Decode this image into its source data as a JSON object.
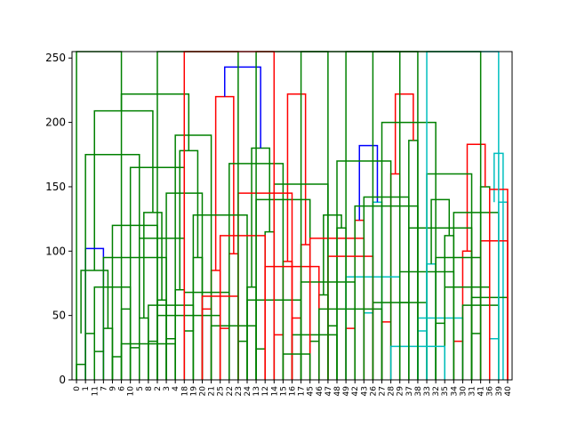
{
  "chart_data": {
    "type": "dendrogram",
    "title": "",
    "xlabel": "",
    "ylabel": "",
    "ylim": [
      0,
      255
    ],
    "yticks": [
      0,
      50,
      100,
      150,
      200,
      250
    ],
    "ytick_labels": [
      "0",
      "50",
      "100",
      "150",
      "200",
      "250"
    ],
    "leaf_labels": [
      "0",
      "1",
      "11",
      "7",
      "9",
      "6",
      "10",
      "5",
      "8",
      "2",
      "3",
      "4",
      "18",
      "19",
      "20",
      "21",
      "25",
      "22",
      "23",
      "24",
      "13",
      "12",
      "14",
      "15",
      "16",
      "17",
      "45",
      "46",
      "47",
      "48",
      "49",
      "42",
      "43",
      "26",
      "27",
      "28",
      "29",
      "37",
      "38",
      "33",
      "32",
      "35",
      "34",
      "30",
      "31",
      "41",
      "36",
      "39",
      "40"
    ],
    "colors": {
      "green": "#008000",
      "red": "#ff0000",
      "blue": "#0000ff",
      "cyan": "#00bfbf",
      "axis": "#000000"
    },
    "links": [
      {
        "a": 0,
        "b": 1,
        "ha": 0,
        "hb": 0,
        "h": 12,
        "c": "green"
      },
      {
        "a": 1,
        "b": 2,
        "ha": 12,
        "hb": 0,
        "h": 36,
        "c": "green"
      },
      {
        "a": 2,
        "b": 3,
        "ha": 0,
        "hb": 0,
        "h": 22,
        "c": "green"
      },
      {
        "a": 3,
        "b": 4,
        "ha": 22,
        "hb": 0,
        "h": 40,
        "c": "green"
      },
      {
        "a": 4,
        "b": 5,
        "ha": 0,
        "hb": 0,
        "h": 18,
        "c": "green"
      },
      {
        "a": 5,
        "b": 6,
        "ha": 18,
        "hb": 0,
        "h": 55,
        "c": "green"
      },
      {
        "a": 0.5,
        "b": 3.5,
        "ha": 36,
        "hb": 40,
        "h": 85,
        "c": "green"
      },
      {
        "a": 6,
        "b": 7,
        "ha": 0,
        "hb": 0,
        "h": 25,
        "c": "green"
      },
      {
        "a": 7,
        "b": 8,
        "ha": 25,
        "hb": 0,
        "h": 48,
        "c": "green"
      },
      {
        "a": 8,
        "b": 9,
        "ha": 0,
        "hb": 0,
        "h": 30,
        "c": "green"
      },
      {
        "a": 9,
        "b": 10,
        "ha": 30,
        "hb": 0,
        "h": 62,
        "c": "green"
      },
      {
        "a": 7.5,
        "b": 9.5,
        "ha": 48,
        "hb": 62,
        "h": 130,
        "c": "green"
      },
      {
        "a": 2,
        "b": 8.5,
        "ha": 85,
        "hb": 130,
        "h": 209,
        "c": "green"
      },
      {
        "a": 10,
        "b": 11,
        "ha": 0,
        "hb": 0,
        "h": 32,
        "c": "green"
      },
      {
        "a": 11,
        "b": 12,
        "ha": 32,
        "hb": 0,
        "h": 70,
        "c": "green"
      },
      {
        "a": 12,
        "b": 13,
        "ha": 0,
        "hb": 0,
        "h": 38,
        "c": "green"
      },
      {
        "a": 13,
        "b": 14,
        "ha": 38,
        "hb": 0,
        "h": 95,
        "c": "green"
      },
      {
        "a": 11.5,
        "b": 13.5,
        "ha": 70,
        "hb": 95,
        "h": 178,
        "c": "green"
      },
      {
        "a": 5,
        "b": 12.5,
        "ha": 209,
        "hb": 178,
        "h": 222,
        "c": "green"
      },
      {
        "a": 1,
        "b": 3,
        "ha": 0,
        "hb": 0,
        "h": 102,
        "c": "blue"
      },
      {
        "a": 14,
        "b": 15,
        "ha": 0,
        "hb": 0,
        "h": 55,
        "c": "red"
      },
      {
        "a": 15,
        "b": 16,
        "ha": 55,
        "hb": 0,
        "h": 85,
        "c": "red"
      },
      {
        "a": 16,
        "b": 17,
        "ha": 0,
        "hb": 0,
        "h": 40,
        "c": "red"
      },
      {
        "a": 17,
        "b": 18,
        "ha": 40,
        "hb": 0,
        "h": 98,
        "c": "red"
      },
      {
        "a": 15.5,
        "b": 17.5,
        "ha": 85,
        "hb": 98,
        "h": 220,
        "c": "red"
      },
      {
        "a": 18,
        "b": 19,
        "ha": 0,
        "hb": 0,
        "h": 30,
        "c": "green"
      },
      {
        "a": 19,
        "b": 20,
        "ha": 30,
        "hb": 0,
        "h": 72,
        "c": "green"
      },
      {
        "a": 20,
        "b": 21,
        "ha": 0,
        "hb": 0,
        "h": 24,
        "c": "green"
      },
      {
        "a": 21,
        "b": 22,
        "ha": 24,
        "hb": 0,
        "h": 115,
        "c": "green"
      },
      {
        "a": 19.5,
        "b": 21.5,
        "ha": 72,
        "hb": 115,
        "h": 180,
        "c": "green"
      },
      {
        "a": 16.5,
        "b": 20.5,
        "ha": 220,
        "hb": 180,
        "h": 243,
        "c": "blue"
      },
      {
        "a": 22,
        "b": 23,
        "ha": 0,
        "hb": 0,
        "h": 35,
        "c": "red"
      },
      {
        "a": 23,
        "b": 24,
        "ha": 35,
        "hb": 0,
        "h": 92,
        "c": "red"
      },
      {
        "a": 24,
        "b": 25,
        "ha": 0,
        "hb": 0,
        "h": 48,
        "c": "red"
      },
      {
        "a": 25,
        "b": 26,
        "ha": 48,
        "hb": 0,
        "h": 105,
        "c": "red"
      },
      {
        "a": 23.5,
        "b": 25.5,
        "ha": 92,
        "hb": 105,
        "h": 222,
        "c": "red"
      },
      {
        "a": 26,
        "b": 27,
        "ha": 0,
        "hb": 0,
        "h": 30,
        "c": "green"
      },
      {
        "a": 27,
        "b": 28,
        "ha": 30,
        "hb": 0,
        "h": 66,
        "c": "green"
      },
      {
        "a": 28,
        "b": 29,
        "ha": 0,
        "hb": 0,
        "h": 42,
        "c": "green"
      },
      {
        "a": 29,
        "b": 30,
        "ha": 42,
        "hb": 0,
        "h": 118,
        "c": "green"
      },
      {
        "a": 27.5,
        "b": 29.5,
        "ha": 66,
        "hb": 118,
        "h": 128,
        "c": "green"
      },
      {
        "a": 30,
        "b": 31,
        "ha": 0,
        "hb": 0,
        "h": 40,
        "c": "red"
      },
      {
        "a": 31,
        "b": 32,
        "ha": 40,
        "hb": 0,
        "h": 124,
        "c": "red"
      },
      {
        "a": 32,
        "b": 33,
        "ha": 0,
        "hb": 0,
        "h": 52,
        "c": "cyan"
      },
      {
        "a": 33,
        "b": 34,
        "ha": 52,
        "hb": 0,
        "h": 138,
        "c": "cyan"
      },
      {
        "a": 31.5,
        "b": 33.5,
        "ha": 124,
        "hb": 138,
        "h": 182,
        "c": "blue"
      },
      {
        "a": 34,
        "b": 35,
        "ha": 0,
        "hb": 0,
        "h": 45,
        "c": "red"
      },
      {
        "a": 35,
        "b": 36,
        "ha": 45,
        "hb": 0,
        "h": 160,
        "c": "red"
      },
      {
        "a": 36,
        "b": 37,
        "ha": 0,
        "hb": 0,
        "h": 60,
        "c": "green"
      },
      {
        "a": 37,
        "b": 38,
        "ha": 60,
        "hb": 0,
        "h": 186,
        "c": "green"
      },
      {
        "a": 35.5,
        "b": 37.5,
        "ha": 160,
        "hb": 186,
        "h": 222,
        "c": "red"
      },
      {
        "a": 38,
        "b": 39,
        "ha": 0,
        "hb": 0,
        "h": 38,
        "c": "cyan"
      },
      {
        "a": 39,
        "b": 40,
        "ha": 38,
        "hb": 0,
        "h": 90,
        "c": "cyan"
      },
      {
        "a": 40,
        "b": 41,
        "ha": 0,
        "hb": 0,
        "h": 44,
        "c": "green"
      },
      {
        "a": 41,
        "b": 42,
        "ha": 44,
        "hb": 0,
        "h": 112,
        "c": "green"
      },
      {
        "a": 39.5,
        "b": 41.5,
        "ha": 90,
        "hb": 112,
        "h": 140,
        "c": "green"
      },
      {
        "a": 42,
        "b": 43,
        "ha": 0,
        "hb": 0,
        "h": 30,
        "c": "red"
      },
      {
        "a": 43,
        "b": 44,
        "ha": 30,
        "hb": 0,
        "h": 100,
        "c": "red"
      },
      {
        "a": 44,
        "b": 45,
        "ha": 0,
        "hb": 0,
        "h": 36,
        "c": "green"
      },
      {
        "a": 45,
        "b": 46,
        "ha": 36,
        "hb": 0,
        "h": 150,
        "c": "green"
      },
      {
        "a": 43.5,
        "b": 45.5,
        "ha": 100,
        "hb": 150,
        "h": 183,
        "c": "red"
      },
      {
        "a": 46,
        "b": 47,
        "ha": 0,
        "hb": 0,
        "h": 32,
        "c": "cyan"
      },
      {
        "a": 47,
        "b": 48,
        "ha": 32,
        "hb": 0,
        "h": 138,
        "c": "cyan"
      },
      {
        "a": 46.5,
        "b": 47.5,
        "ha": 138,
        "hb": 0,
        "h": 176,
        "c": "cyan"
      },
      {
        "a": 2,
        "b": 6,
        "ha": 0,
        "hb": 0,
        "h": 72,
        "c": "green"
      },
      {
        "a": 4,
        "b": 9,
        "ha": 0,
        "hb": 0,
        "h": 120,
        "c": "green"
      },
      {
        "a": 6,
        "b": 12,
        "ha": 0,
        "hb": 0,
        "h": 165,
        "c": "green"
      },
      {
        "a": 8,
        "b": 13,
        "ha": 0,
        "hb": 0,
        "h": 58,
        "c": "green"
      },
      {
        "a": 10,
        "b": 14,
        "ha": 0,
        "hb": 0,
        "h": 145,
        "c": "green"
      },
      {
        "a": 12,
        "b": 17,
        "ha": 0,
        "hb": 0,
        "h": 68,
        "c": "green"
      },
      {
        "a": 13,
        "b": 19,
        "ha": 0,
        "hb": 0,
        "h": 128,
        "c": "green"
      },
      {
        "a": 15,
        "b": 20,
        "ha": 0,
        "hb": 0,
        "h": 42,
        "c": "green"
      },
      {
        "a": 17,
        "b": 23,
        "ha": 0,
        "hb": 0,
        "h": 168,
        "c": "green"
      },
      {
        "a": 19,
        "b": 25,
        "ha": 0,
        "hb": 0,
        "h": 62,
        "c": "green"
      },
      {
        "a": 20,
        "b": 26,
        "ha": 0,
        "hb": 0,
        "h": 140,
        "c": "green"
      },
      {
        "a": 21,
        "b": 27,
        "ha": 0,
        "hb": 0,
        "h": 88,
        "c": "red"
      },
      {
        "a": 22,
        "b": 28,
        "ha": 0,
        "hb": 0,
        "h": 152,
        "c": "green"
      },
      {
        "a": 24,
        "b": 29,
        "ha": 0,
        "hb": 0,
        "h": 35,
        "c": "green"
      },
      {
        "a": 25,
        "b": 31,
        "ha": 0,
        "hb": 0,
        "h": 76,
        "c": "green"
      },
      {
        "a": 26,
        "b": 32,
        "ha": 0,
        "hb": 0,
        "h": 110,
        "c": "red"
      },
      {
        "a": 27,
        "b": 34,
        "ha": 0,
        "hb": 0,
        "h": 55,
        "c": "green"
      },
      {
        "a": 29,
        "b": 35,
        "ha": 0,
        "hb": 0,
        "h": 170,
        "c": "green"
      },
      {
        "a": 30,
        "b": 36,
        "ha": 0,
        "hb": 0,
        "h": 80,
        "c": "cyan"
      },
      {
        "a": 31,
        "b": 38,
        "ha": 0,
        "hb": 0,
        "h": 135,
        "c": "green"
      },
      {
        "a": 33,
        "b": 39,
        "ha": 0,
        "hb": 0,
        "h": 60,
        "c": "green"
      },
      {
        "a": 34,
        "b": 40,
        "ha": 0,
        "hb": 0,
        "h": 200,
        "c": "green"
      },
      {
        "a": 36,
        "b": 42,
        "ha": 0,
        "hb": 0,
        "h": 84,
        "c": "green"
      },
      {
        "a": 38,
        "b": 43,
        "ha": 0,
        "hb": 0,
        "h": 48,
        "c": "cyan"
      },
      {
        "a": 39,
        "b": 44,
        "ha": 0,
        "hb": 0,
        "h": 160,
        "c": "green"
      },
      {
        "a": 40,
        "b": 45,
        "ha": 0,
        "hb": 0,
        "h": 95,
        "c": "green"
      },
      {
        "a": 41,
        "b": 46,
        "ha": 0,
        "hb": 0,
        "h": 72,
        "c": "green"
      },
      {
        "a": 42,
        "b": 47,
        "ha": 0,
        "hb": 0,
        "h": 130,
        "c": "green"
      },
      {
        "a": 44,
        "b": 48,
        "ha": 0,
        "hb": 0,
        "h": 64,
        "c": "green"
      },
      {
        "a": 45,
        "b": 48,
        "ha": 0,
        "hb": 0,
        "h": 108,
        "c": "red"
      },
      {
        "a": 1,
        "b": 7,
        "ha": 0,
        "hb": 0,
        "h": 175,
        "c": "green"
      },
      {
        "a": 3,
        "b": 10,
        "ha": 0,
        "hb": 0,
        "h": 95,
        "c": "green"
      },
      {
        "a": 5,
        "b": 11,
        "ha": 0,
        "hb": 0,
        "h": 28,
        "c": "green"
      },
      {
        "a": 7,
        "b": 12,
        "ha": 0,
        "hb": 0,
        "h": 110,
        "c": "green"
      },
      {
        "a": 9,
        "b": 16,
        "ha": 0,
        "hb": 0,
        "h": 50,
        "c": "green"
      },
      {
        "a": 11,
        "b": 15,
        "ha": 0,
        "hb": 0,
        "h": 190,
        "c": "green"
      },
      {
        "a": 14,
        "b": 18,
        "ha": 0,
        "hb": 0,
        "h": 65,
        "c": "red"
      },
      {
        "a": 16,
        "b": 21,
        "ha": 0,
        "hb": 0,
        "h": 112,
        "c": "red"
      },
      {
        "a": 18,
        "b": 24,
        "ha": 0,
        "hb": 0,
        "h": 145,
        "c": "red"
      },
      {
        "a": 23,
        "b": 26,
        "ha": 0,
        "hb": 0,
        "h": 20,
        "c": "green"
      },
      {
        "a": 28,
        "b": 33,
        "ha": 0,
        "hb": 0,
        "h": 96,
        "c": "red"
      },
      {
        "a": 32,
        "b": 37,
        "ha": 0,
        "hb": 0,
        "h": 142,
        "c": "green"
      },
      {
        "a": 35,
        "b": 41,
        "ha": 0,
        "hb": 0,
        "h": 26,
        "c": "cyan"
      },
      {
        "a": 37,
        "b": 44,
        "ha": 0,
        "hb": 0,
        "h": 118,
        "c": "green"
      },
      {
        "a": 43,
        "b": 47,
        "ha": 0,
        "hb": 0,
        "h": 58,
        "c": "green"
      },
      {
        "a": 46,
        "b": 48,
        "ha": 0,
        "hb": 0,
        "h": 148,
        "c": "red"
      },
      {
        "a": 0,
        "b": 5,
        "ha": 0,
        "hb": 0,
        "h": 255,
        "c": "green"
      },
      {
        "a": 9,
        "b": 18,
        "ha": 0,
        "hb": 0,
        "h": 255,
        "c": "green"
      },
      {
        "a": 20,
        "b": 28,
        "ha": 0,
        "hb": 0,
        "h": 255,
        "c": "green"
      },
      {
        "a": 30,
        "b": 38,
        "ha": 0,
        "hb": 0,
        "h": 255,
        "c": "green"
      },
      {
        "a": 39,
        "b": 47,
        "ha": 0,
        "hb": 0,
        "h": 255,
        "c": "cyan"
      },
      {
        "a": 12,
        "b": 22,
        "ha": 0,
        "hb": 0,
        "h": 255,
        "c": "red"
      },
      {
        "a": 25,
        "b": 36,
        "ha": 0,
        "hb": 0,
        "h": 255,
        "c": "green"
      },
      {
        "a": 33,
        "b": 45,
        "ha": 0,
        "hb": 0,
        "h": 255,
        "c": "green"
      }
    ]
  }
}
